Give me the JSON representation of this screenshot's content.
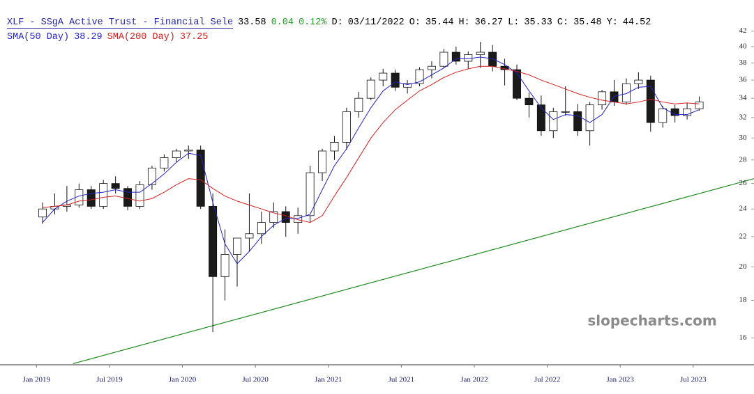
{
  "chart_data": {
    "type": "candlestick",
    "title": "XLF - SSgA Active Trust - Financial Sele",
    "last": 33.58,
    "change": 0.04,
    "change_pct": {
      "value": 0.12,
      "label": "0.12%"
    },
    "quote": [
      {
        "label": "D:",
        "value": "03/11/2022"
      },
      {
        "label": "O:",
        "value": 35.44
      },
      {
        "label": "H:",
        "value": 36.27
      },
      {
        "label": "L:",
        "value": 35.33
      },
      {
        "label": "C:",
        "value": 35.48
      },
      {
        "label": "Y:",
        "value": 44.52
      }
    ],
    "watermark": "slopecharts.com",
    "log_scale": true,
    "up_color": "#ffffff",
    "down_color": "#1a1a1a",
    "x": [
      "2019-01",
      "2019-02",
      "2019-03",
      "2019-04",
      "2019-05",
      "2019-06",
      "2019-07",
      "2019-08",
      "2019-09",
      "2019-10",
      "2019-11",
      "2019-12",
      "2020-01",
      "2020-02",
      "2020-03",
      "2020-04",
      "2020-05",
      "2020-06",
      "2020-07",
      "2020-08",
      "2020-09",
      "2020-10",
      "2020-11",
      "2020-12",
      "2021-01",
      "2021-02",
      "2021-03",
      "2021-04",
      "2021-05",
      "2021-06",
      "2021-07",
      "2021-08",
      "2021-09",
      "2021-10",
      "2021-11",
      "2021-12",
      "2022-01",
      "2022-02",
      "2022-03",
      "2022-04",
      "2022-05",
      "2022-06",
      "2022-07",
      "2022-08",
      "2022-09",
      "2022-10",
      "2022-11",
      "2022-12",
      "2023-01",
      "2023-02",
      "2023-03",
      "2023-04",
      "2023-05",
      "2023-06",
      "2023-07"
    ],
    "open": [
      23.4,
      24.0,
      24.2,
      24.3,
      25.5,
      24.2,
      26.0,
      25.6,
      24.2,
      25.9,
      27.3,
      28.2,
      28.8,
      28.9,
      24.2,
      19.4,
      20.8,
      21.9,
      22.2,
      23.0,
      23.8,
      23.0,
      23.5,
      26.9,
      28.8,
      29.6,
      32.6,
      34.0,
      36.0,
      36.8,
      35.2,
      35.6,
      37.2,
      37.6,
      39.3,
      38.2,
      39.0,
      39.3,
      37.6,
      37.2,
      34.0,
      33.3,
      30.7,
      32.6,
      32.6,
      30.7,
      33.3,
      34.7,
      33.6,
      35.6,
      36.0,
      31.5,
      32.9,
      32.2,
      32.9
    ],
    "high": [
      24.5,
      25.2,
      25.8,
      26.0,
      25.8,
      26.3,
      26.6,
      25.8,
      26.2,
      27.5,
      28.5,
      29.0,
      29.3,
      29.3,
      25.2,
      22.5,
      21.8,
      25.2,
      23.8,
      24.5,
      24.2,
      24.1,
      27.5,
      29.0,
      30.2,
      33.0,
      34.7,
      36.3,
      37.3,
      37.2,
      36.0,
      37.5,
      38.2,
      39.7,
      40.0,
      39.4,
      40.6,
      40.2,
      38.5,
      37.8,
      34.6,
      34.3,
      33.0,
      35.3,
      33.4,
      33.6,
      34.9,
      36.0,
      36.2,
      36.9,
      36.5,
      33.2,
      33.3,
      33.5,
      34.2
    ],
    "low": [
      22.9,
      23.6,
      23.8,
      24.1,
      24.0,
      24.0,
      25.2,
      23.9,
      24.0,
      25.5,
      27.0,
      27.8,
      28.1,
      24.0,
      16.3,
      18.0,
      18.8,
      21.0,
      21.5,
      22.6,
      22.0,
      22.2,
      23.0,
      26.2,
      28.0,
      28.9,
      32.0,
      33.8,
      35.3,
      34.8,
      34.5,
      35.3,
      36.2,
      37.4,
      37.8,
      37.3,
      37.4,
      37.0,
      35.4,
      33.8,
      32.0,
      30.2,
      30.0,
      32.2,
      30.2,
      29.3,
      32.8,
      33.2,
      33.3,
      35.0,
      30.6,
      31.0,
      31.5,
      31.8,
      32.7
    ],
    "close": [
      24.0,
      24.2,
      24.3,
      25.5,
      24.2,
      26.0,
      25.6,
      24.2,
      25.9,
      27.3,
      28.2,
      28.8,
      28.9,
      24.2,
      19.4,
      20.8,
      21.9,
      22.2,
      23.0,
      23.8,
      23.0,
      23.5,
      26.9,
      28.8,
      29.6,
      32.6,
      34.0,
      36.0,
      36.8,
      35.2,
      35.6,
      37.2,
      37.6,
      39.3,
      38.2,
      39.0,
      39.3,
      37.6,
      37.2,
      34.0,
      33.3,
      30.7,
      32.6,
      32.6,
      30.7,
      33.3,
      34.7,
      33.6,
      35.6,
      36.0,
      31.5,
      32.9,
      32.2,
      32.9,
      33.6
    ],
    "series": [
      {
        "name": "SMA(50 Day)",
        "last": 38.29,
        "color": "#2323c8",
        "values": [
          23.0,
          24.0,
          24.6,
          25.0,
          25.2,
          25.3,
          25.5,
          25.3,
          25.3,
          26.0,
          26.8,
          27.8,
          28.6,
          28.4,
          24.5,
          21.5,
          20.2,
          21.0,
          22.0,
          22.8,
          23.3,
          23.3,
          23.6,
          25.5,
          27.5,
          29.0,
          31.0,
          33.0,
          34.8,
          35.8,
          35.5,
          35.8,
          36.6,
          37.4,
          38.5,
          38.5,
          38.7,
          38.5,
          37.8,
          36.8,
          34.8,
          33.0,
          31.8,
          32.3,
          32.2,
          31.5,
          32.3,
          34.2,
          34.5,
          35.2,
          35.3,
          33.0,
          32.3,
          32.3,
          32.8
        ]
      },
      {
        "name": "SMA(200 Day)",
        "last": 37.25,
        "color": "#d42020",
        "values": [
          24.1,
          24.2,
          24.3,
          24.6,
          24.7,
          24.9,
          25.0,
          24.8,
          24.6,
          24.8,
          25.3,
          25.9,
          26.4,
          26.3,
          25.6,
          25.0,
          24.6,
          24.3,
          24.0,
          23.7,
          23.5,
          23.2,
          23.0,
          23.5,
          25.0,
          26.5,
          28.2,
          30.0,
          31.5,
          32.8,
          33.8,
          34.8,
          35.5,
          36.3,
          36.9,
          37.3,
          37.6,
          37.6,
          37.3,
          37.0,
          36.6,
          36.0,
          35.5,
          35.0,
          34.5,
          34.1,
          33.8,
          33.6,
          33.4,
          33.6,
          33.9,
          33.6,
          33.4,
          33.5,
          33.4
        ]
      }
    ],
    "trendline": {
      "color": "#1f8a1f",
      "x": [
        "2019-04",
        "2023-12"
      ],
      "values": [
        14.75,
        26.4
      ]
    },
    "xlim": [
      "2018-10",
      "2023-12"
    ],
    "xticks": [
      {
        "value": "2019-01",
        "label": "Jan 2019"
      },
      {
        "value": "2019-07",
        "label": "Jul 2019"
      },
      {
        "value": "2020-01",
        "label": "Jan 2020"
      },
      {
        "value": "2020-07",
        "label": "Jul 2020"
      },
      {
        "value": "2021-01",
        "label": "Jan 2021"
      },
      {
        "value": "2021-07",
        "label": "Jul 2021"
      },
      {
        "value": "2022-01",
        "label": "Jan 2022"
      },
      {
        "value": "2022-07",
        "label": "Jul 2022"
      },
      {
        "value": "2023-01",
        "label": "Jan 2023"
      },
      {
        "value": "2023-07",
        "label": "Jul 2023"
      }
    ],
    "ylim": [
      14.7,
      42.9
    ],
    "yticks": [
      16,
      18,
      20,
      22,
      24,
      26,
      28,
      30,
      32,
      34,
      36,
      38,
      40,
      42
    ]
  }
}
